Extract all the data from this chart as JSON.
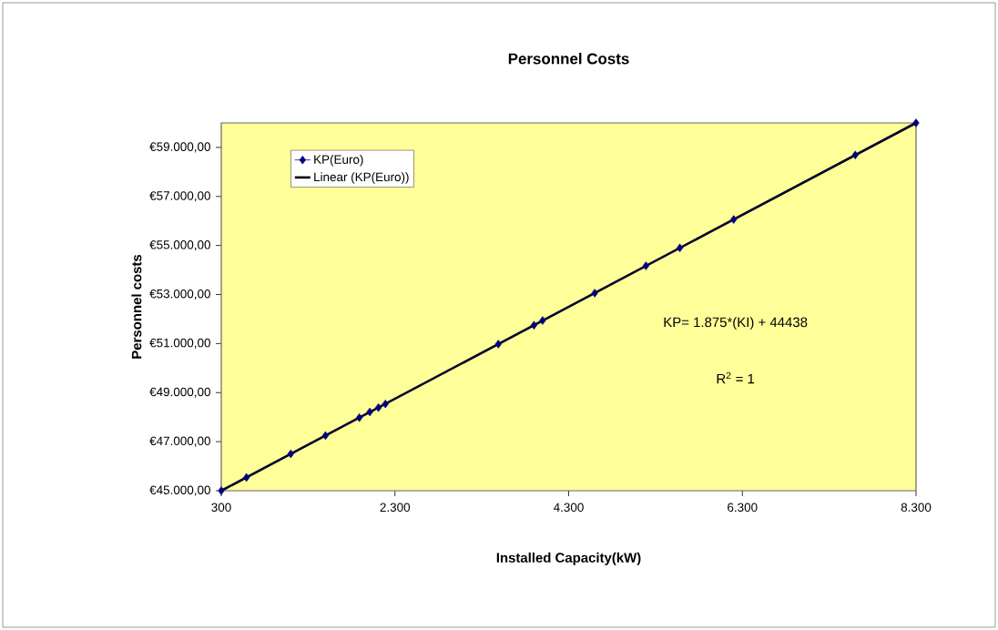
{
  "chart_data": {
    "type": "line",
    "title": "Personnel Costs",
    "xlabel": "Installed Capacity(kW)",
    "ylabel": "Personnel costs",
    "annotations": [
      "KP= 1.875*(KI) + 44438",
      "R$^{2}$ = 1"
    ],
    "series": [
      {
        "name": "KP(Euro)",
        "color": "#000080",
        "marker": "diamond",
        "x": [
          300,
          590,
          1100,
          1500,
          1890,
          2010,
          2110,
          2190,
          3490,
          3900,
          4000,
          4600,
          5190,
          5580,
          6200,
          7600,
          8300
        ],
        "values": [
          45000,
          45540,
          46500,
          47250,
          47980,
          48210,
          48390,
          48540,
          50980,
          51750,
          51940,
          53060,
          54170,
          54900,
          56060,
          58690,
          60000
        ]
      },
      {
        "name": "Linear (KP(Euro))",
        "color": "#000000",
        "marker": "none",
        "x": [
          300,
          8300
        ],
        "values": [
          45000,
          60000
        ]
      }
    ],
    "xlim": [
      300,
      8300
    ],
    "ylim": [
      45000,
      60000
    ],
    "xticks": [
      {
        "value": 300,
        "label": "300"
      },
      {
        "value": 2300,
        "label": "2.300"
      },
      {
        "value": 4300,
        "label": "4.300"
      },
      {
        "value": 6300,
        "label": "6.300"
      },
      {
        "value": 8300,
        "label": "8.300"
      }
    ],
    "yticks": [
      {
        "value": 45000,
        "label": "€45.000,00"
      },
      {
        "value": 47000,
        "label": "€47.000,00"
      },
      {
        "value": 49000,
        "label": "€49.000,00"
      },
      {
        "value": 51000,
        "label": "€51.000,00"
      },
      {
        "value": 53000,
        "label": "€53.000,00"
      },
      {
        "value": 55000,
        "label": "€55.000,00"
      },
      {
        "value": 57000,
        "label": "€57.000,00"
      },
      {
        "value": 59000,
        "label": "€59.000,00"
      }
    ],
    "grid": false,
    "legend": "top left"
  }
}
